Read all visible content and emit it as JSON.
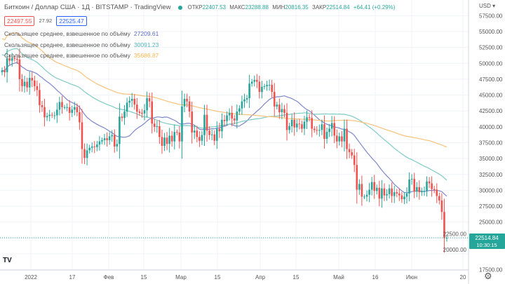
{
  "header": {
    "title": "Биткоин / Доллар США · 1Д · BITSTAMP · TradingView",
    "ohlc": [
      {
        "label": "ОТКР",
        "value": "22407.53"
      },
      {
        "label": "МАКС",
        "value": "23288.88"
      },
      {
        "label": "МИН",
        "value": "20816.35"
      },
      {
        "label": "ЗАКР",
        "value": "22514.84"
      }
    ],
    "change": "+64.41 (+0.29%)",
    "bid": "22497.55",
    "spread": "27.92",
    "ask": "22525.47"
  },
  "indicators": [
    {
      "name": "Скользящее среднее, взвешенное по объёму",
      "value": "27209.61",
      "color": "#7e86c9",
      "period": 20
    },
    {
      "name": "Скользящее среднее, взвешенное по объёму",
      "value": "30091.23",
      "color": "#80cbc4",
      "period": 50
    },
    {
      "name": "Скользящее среднее, взвешенное по объёму",
      "value": "35686.87",
      "color": "#f7c27a",
      "period": 100
    }
  ],
  "price_axis": {
    "currency": "USD ▾",
    "current_price": "22514.84",
    "countdown": "10:30:15"
  },
  "colors": {
    "up": "#26a69a",
    "down": "#ef5350"
  },
  "chart_data": {
    "type": "candlestick",
    "ylim": [
      17500,
      58500
    ],
    "y_ticks": [
      "57500.00",
      "55000.00",
      "52500.00",
      "50000.00",
      "47500.00",
      "45000.00",
      "42500.00",
      "40000.00",
      "37500.00",
      "35000.00",
      "32500.00",
      "30000.00",
      "27500.00",
      "25000.00",
      "22500.00",
      "20000.00",
      "17500.00"
    ],
    "x_ticks": [
      "2022",
      "17",
      "Фев",
      "15",
      "Мар",
      "15",
      "Апр",
      "15",
      "Май",
      "16",
      "Июн",
      "20"
    ],
    "first_date": "2021-12-21",
    "closes": [
      48900,
      48600,
      50800,
      50400,
      50800,
      50700,
      50600,
      47500,
      46400,
      47100,
      46200,
      47700,
      47300,
      46400,
      45800,
      43400,
      43100,
      41500,
      41700,
      41900,
      41800,
      41800,
      42700,
      43900,
      43100,
      43100,
      43100,
      42200,
      42700,
      43100,
      42300,
      40700,
      36500,
      35100,
      36300,
      36700,
      36900,
      36800,
      37200,
      37700,
      37900,
      38200,
      37900,
      38500,
      38700,
      36900,
      37300,
      41600,
      41400,
      42400,
      43800,
      44100,
      44400,
      43500,
      42400,
      42200,
      42100,
      42600,
      44500,
      44000,
      40500,
      40000,
      40100,
      38400,
      37000,
      38300,
      37300,
      38600,
      37700,
      39200,
      39100,
      37700,
      43200,
      44400,
      44000,
      42400,
      39100,
      39400,
      38400,
      37800,
      38700,
      41900,
      39400,
      38700,
      38800,
      37800,
      39700,
      39300,
      41100,
      40900,
      41800,
      42200,
      41300,
      41000,
      42400,
      42900,
      44000,
      44300,
      44500,
      46800,
      47100,
      47400,
      47100,
      45500,
      46300,
      46400,
      46600,
      46600,
      45500,
      43200,
      43500,
      42300,
      42800,
      42200,
      39500,
      40100,
      41100,
      39900,
      40500,
      40400,
      39700,
      40800,
      41500,
      41400,
      39700,
      39500,
      39400,
      39500,
      40400,
      38100,
      39200,
      39700,
      40600,
      38600,
      37700,
      38500,
      37700,
      39700,
      36500,
      36000,
      35500,
      34000,
      30100,
      31000,
      29000,
      29000,
      29300,
      30100,
      31300,
      29900,
      30400,
      28700,
      30300,
      29200,
      29400,
      30300,
      29100,
      29700,
      29500,
      29200,
      28600,
      29000,
      29500,
      31700,
      31800,
      29800,
      30500,
      29700,
      29900,
      29900,
      31400,
      31100,
      30200,
      30100,
      29100,
      28400,
      26600,
      22450,
      22515
    ]
  }
}
